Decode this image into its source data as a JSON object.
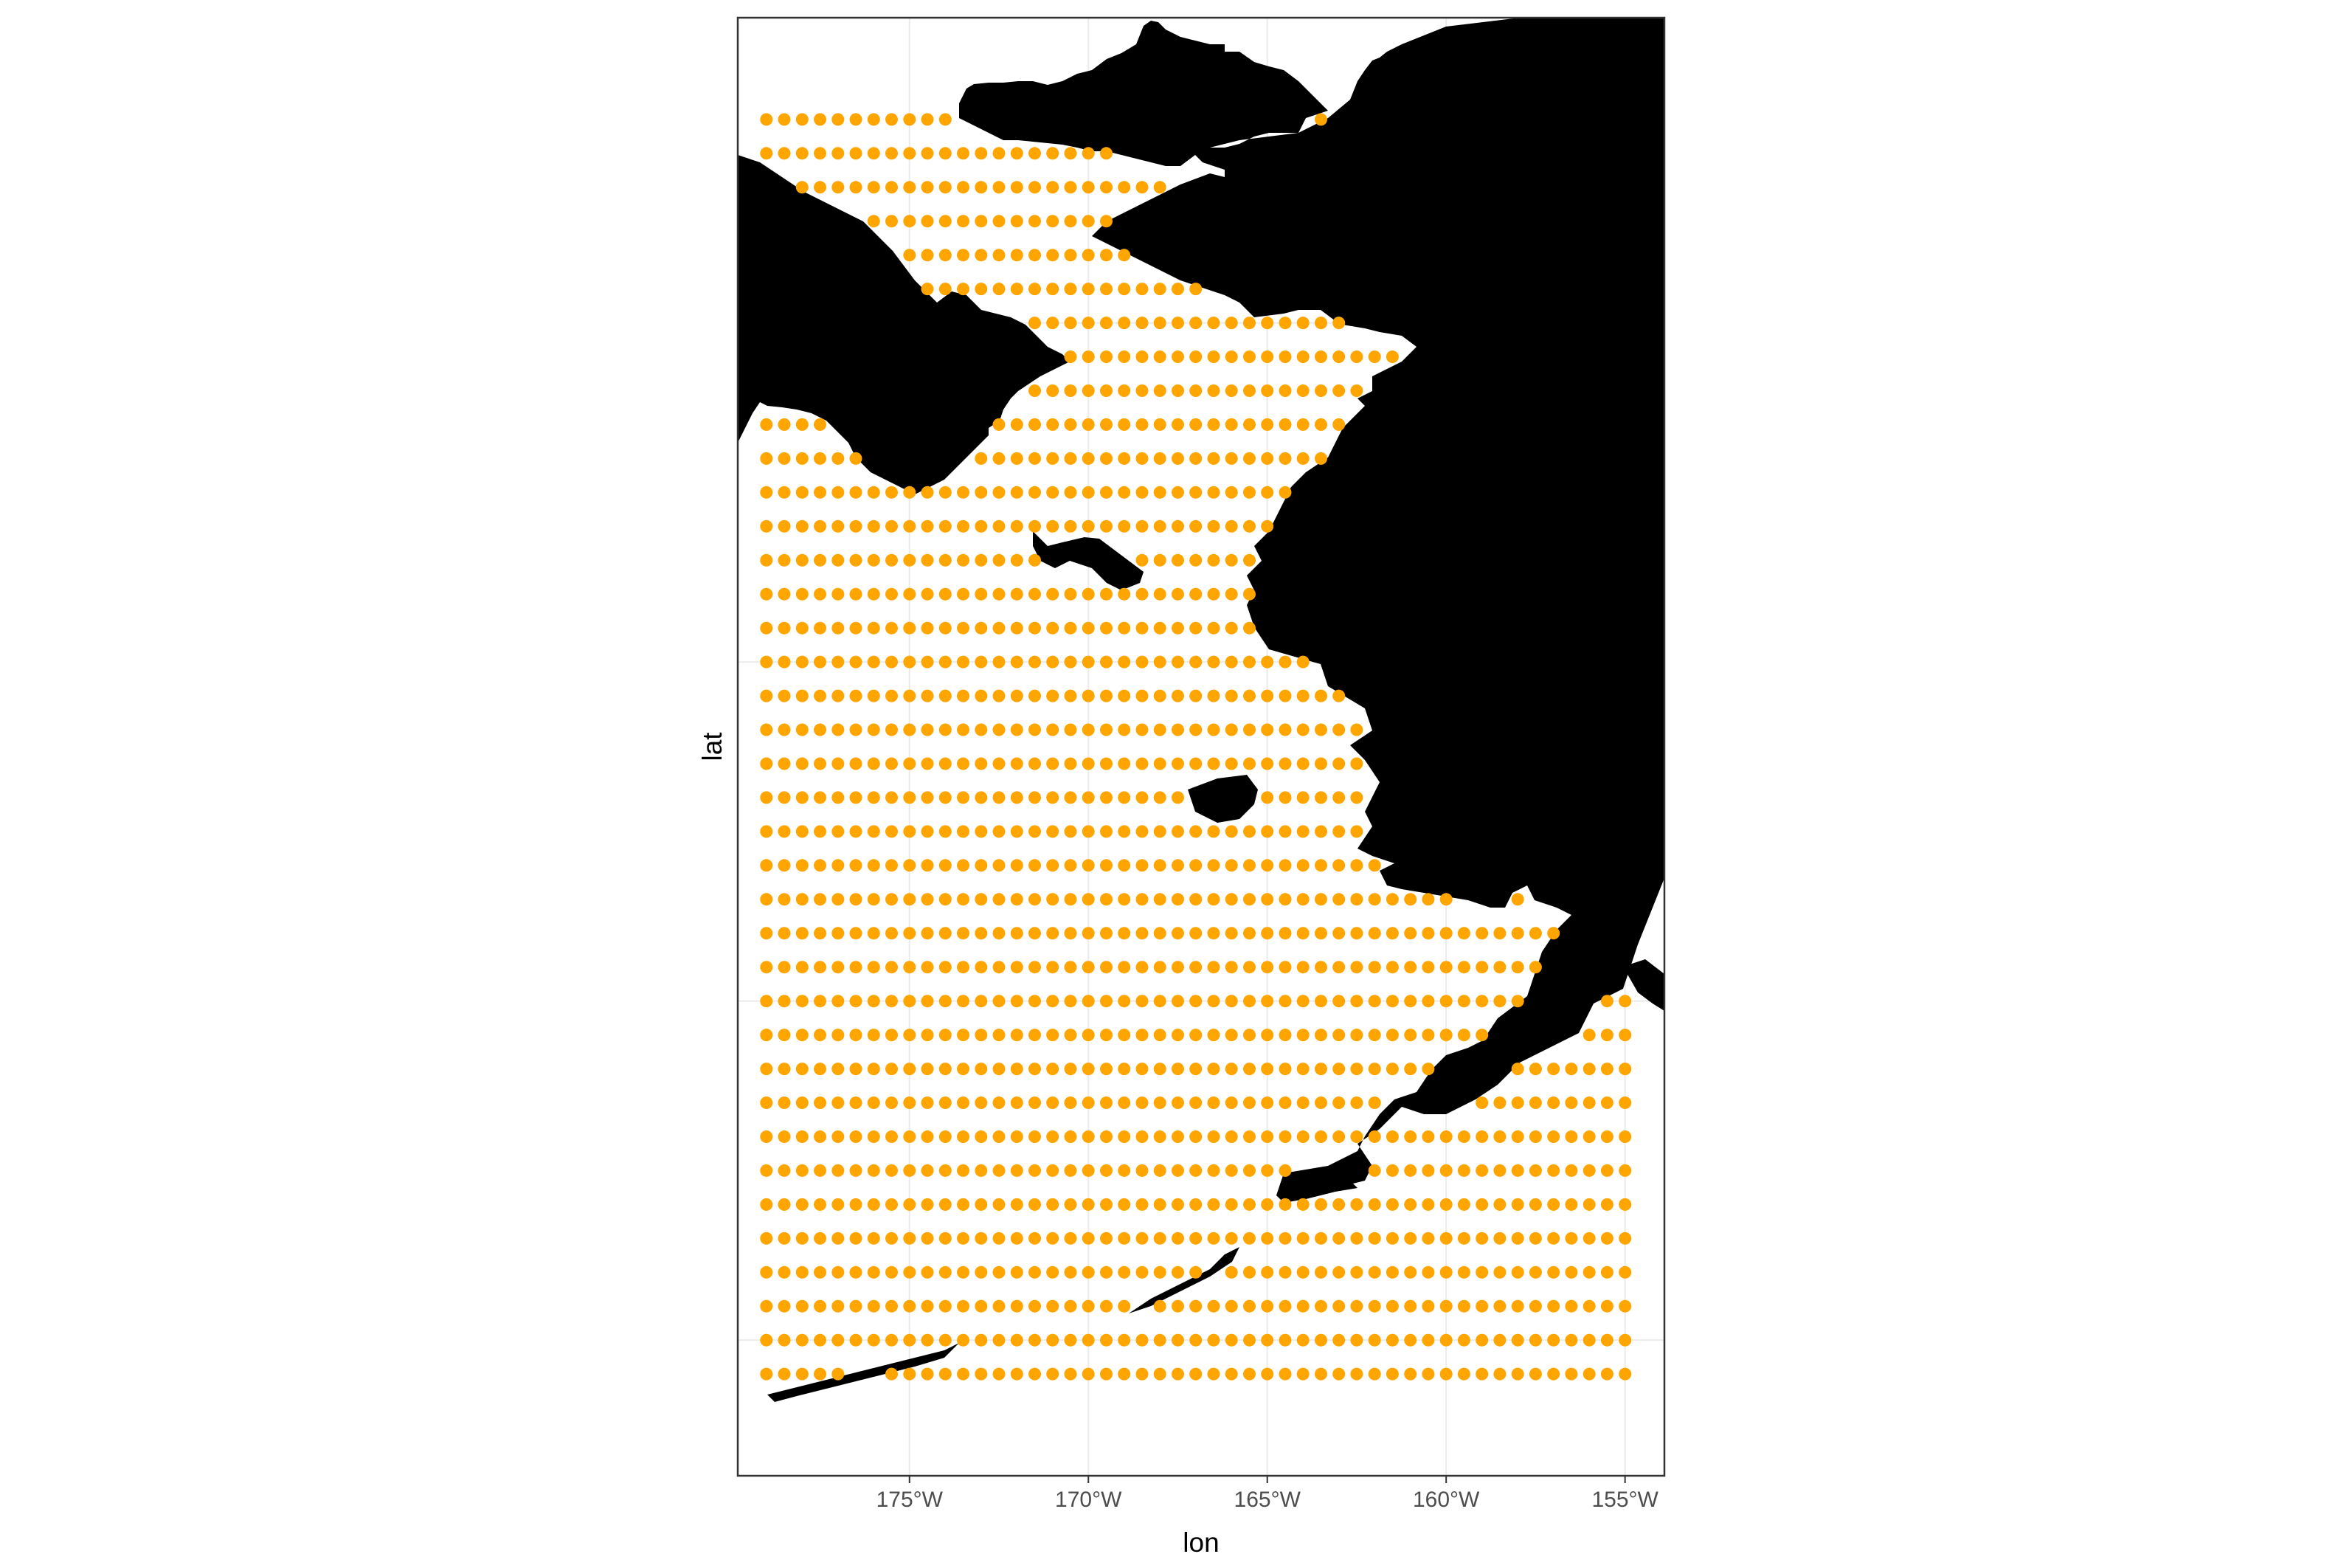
{
  "chart_data": {
    "type": "scatter",
    "title": "",
    "xlabel": "lon",
    "ylabel": "lat",
    "xlim": [
      -179.8,
      -153.9
    ],
    "ylim": [
      50.5,
      72.0
    ],
    "x_ticks": [
      {
        "value": -175,
        "label": "175°W"
      },
      {
        "value": -170,
        "label": "170°W"
      },
      {
        "value": -165,
        "label": "165°W"
      },
      {
        "value": -160,
        "label": "160°W"
      },
      {
        "value": -155,
        "label": "155°W"
      }
    ],
    "y_ticks": [],
    "grid": true,
    "grid_lat_lines": [
      52.5,
      57.5,
      62.5,
      67.5
    ],
    "legend": "none",
    "series": [
      {
        "marker": "point",
        "grid_spec": {
          "lon_start": -179,
          "lon_end": -155,
          "lon_step": 0.5,
          "lat_start": 52,
          "lat_end": 70.5,
          "lat_step": 0.5
        },
        "note": "points on a regular 0.5° grid over water (land cells omitted)"
      }
    ],
    "colors": {
      "points": "#ffa500",
      "land": "#000000",
      "grid": "#ebebeb",
      "panel_border": "#333333"
    }
  }
}
